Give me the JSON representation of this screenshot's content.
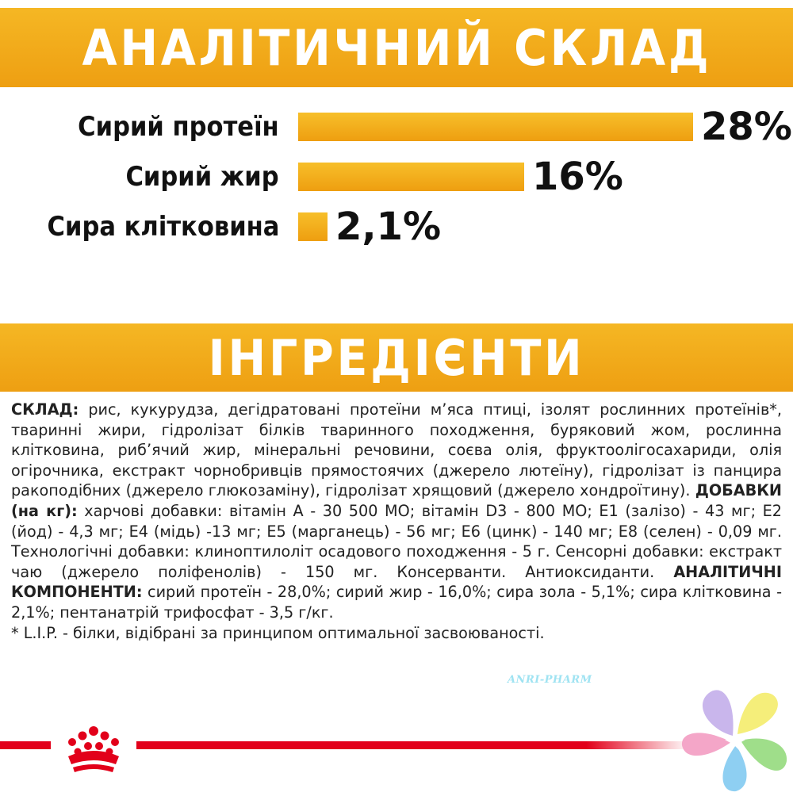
{
  "sections": {
    "analytical_title": "АНАЛІТИЧНИЙ СКЛАД",
    "ingredients_title": "ІНГРЕДІЄНТИ"
  },
  "analysis": [
    {
      "label": "Сирий протеїн",
      "value": "28%",
      "percent": 28
    },
    {
      "label": "Сирий жир",
      "value": "16%",
      "percent": 16
    },
    {
      "label": "Сира клітковина",
      "value": "2,1%",
      "percent": 2.1
    }
  ],
  "ingredients": {
    "composition_label": "СКЛАД:",
    "composition_text": " рис, кукурудза, дегідратовані протеїни м’яса птиці, ізолят рослинних протеїнів*, тваринні жири, гідролізат білків тваринного походження, буряковий жом, рослинна клітковина, риб’ячий жир, мінеральні речовини, соєва олія, фруктоолігосахариди, олія огірочника, екстракт чорнобривців прямостоячих (джерело лютеїну), гідролізат із панцира ракоподібних (джерело глюкозаміну), гідролізат хрящовий (джерело хондроїтину). ",
    "additives_label": "ДОБАВКИ (на кг):",
    "additives_text": " харчові добавки: вітамін А - 30 500 МО; вітамін D3 - 800 МО; Е1 (залізо) - 43 мг; Е2 (йод) - 4,3 мг; Е4 (мідь) -13 мг; Е5 (марганець) - 56 мг; Е6 (цинк) - 140 мг; Е8 (селен) - 0,09 мг. Технологічні добавки: клиноптилоліт осадового походження - 5 г. Сенсорні добавки: екстракт чаю (джерело поліфенолів) - 150 мг. Консерванти. Антиоксиданти. ",
    "components_label": "АНАЛІТИЧНІ КОМПОНЕНТИ:",
    "components_text": " сирий протеїн - 28,0%; сирий жир - 16,0%; сира зола - 5,1%; сира клітковина - 2,1%; пентанатрій трифосфат - 3,5 г/кг.",
    "footnote": "* L.I.P. - білки, відібрані за принципом оптимальної засвоюваності."
  },
  "watermark": "ANRI-PHARM",
  "icons": {
    "brand_logo": "royal-crown-icon",
    "corner_logo": "pastel-flower-icon"
  },
  "colors": {
    "banner": "#f2b01e",
    "bar": "#f2ae1c",
    "brand_red": "#e2001a",
    "watermark": "#9fe3f2"
  }
}
